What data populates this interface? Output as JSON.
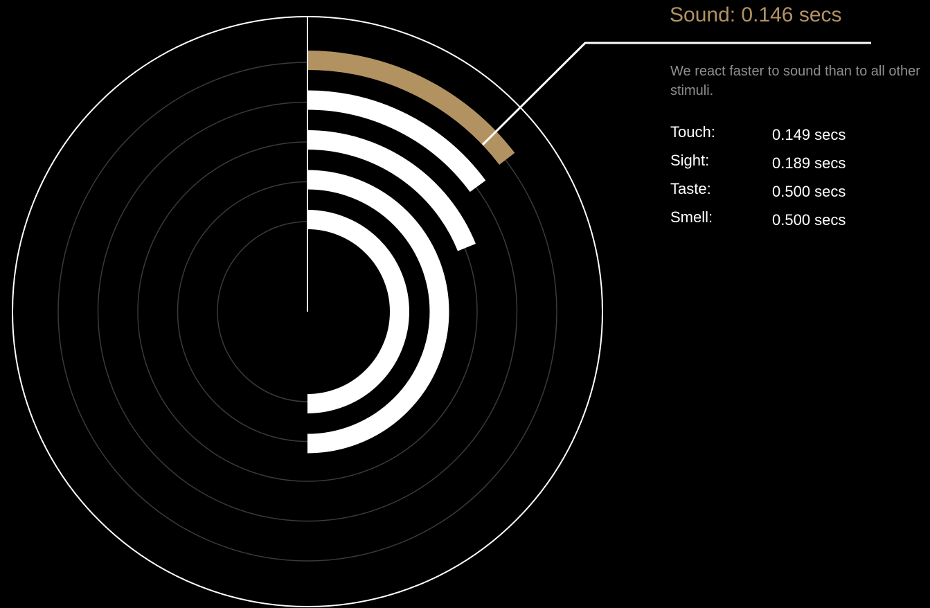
{
  "headline": {
    "label": "Sound: 0.146 secs"
  },
  "description": "We react faster to sound than to all other stimuli.",
  "stimuli": [
    {
      "name": "Touch:",
      "time": "0.149 secs"
    },
    {
      "name": "Sight:",
      "time": "0.189 secs"
    },
    {
      "name": "Taste:",
      "time": "0.500 secs"
    },
    {
      "name": "Smell:",
      "time": "0.500 secs"
    }
  ],
  "colors": {
    "background": "#000000",
    "highlight": "#b39262",
    "bar": "#ffffff",
    "grid": "#3a3a3a",
    "outer_ring": "#ffffff",
    "secondary_text": "#8f8f8f"
  },
  "chart_data": {
    "type": "radial-bar",
    "title": "Sound: 0.146 secs",
    "scale": {
      "min": 0,
      "max": 1.0,
      "unit": "secs",
      "direction": "clockwise from top"
    },
    "series": [
      {
        "name": "Sound",
        "value": 0.146,
        "highlight": true
      },
      {
        "name": "Touch",
        "value": 0.149
      },
      {
        "name": "Sight",
        "value": 0.189
      },
      {
        "name": "Taste",
        "value": 0.5
      },
      {
        "name": "Smell",
        "value": 0.5
      }
    ],
    "grid": true
  }
}
